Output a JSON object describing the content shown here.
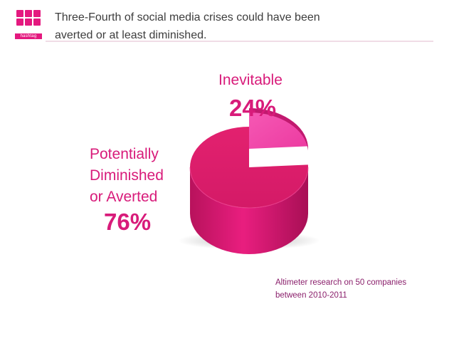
{
  "header": {
    "title_line1": "Three-Fourth of social media crises could have been",
    "title_line2": "averted or at least  diminished."
  },
  "logo": {
    "text": "hashtag",
    "color": "#e4197f"
  },
  "chart_data": {
    "type": "pie",
    "title": "",
    "slices": [
      {
        "label_lines": [
          "Inevitable"
        ],
        "value": 24,
        "value_text": "24%",
        "color": "#f03ca2"
      },
      {
        "label_lines": [
          "Potentially",
          "Diminished",
          "or Averted"
        ],
        "value": 76,
        "value_text": "76%",
        "color": "#e01a76"
      }
    ]
  },
  "source": {
    "line1": "Altimeter research on 50 companies",
    "line2": "between 2010-2011"
  }
}
